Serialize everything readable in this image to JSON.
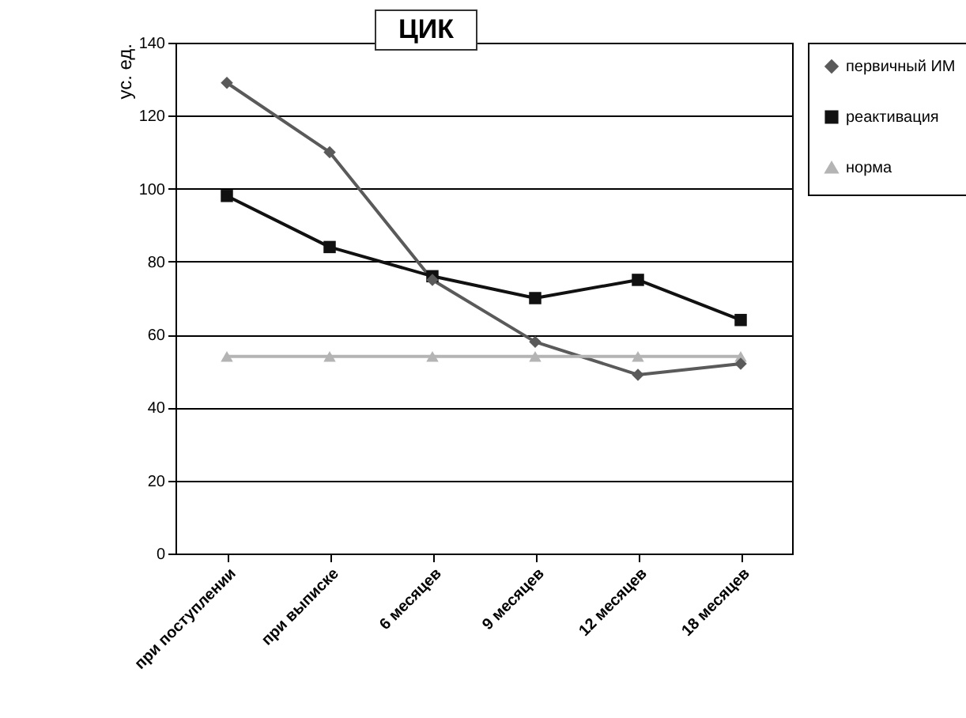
{
  "chart_data": {
    "type": "line",
    "title": "ЦИК",
    "ylabel": "ус. ед.",
    "categories": [
      "при поступлении",
      "при выписке",
      "6 месяцев",
      "9 месяцев",
      "12 месяцев",
      "18 месяцев"
    ],
    "series": [
      {
        "name": "первичный ИМ",
        "color": "#5a5a5a",
        "marker": "diamond",
        "values": [
          129,
          110,
          75,
          58,
          49,
          52
        ]
      },
      {
        "name": "реактивация",
        "color": "#111111",
        "marker": "square",
        "values": [
          98,
          84,
          76,
          70,
          75,
          64
        ]
      },
      {
        "name": "норма",
        "color": "#b4b4b4",
        "marker": "triangle",
        "values": [
          54,
          54,
          54,
          54,
          54,
          54
        ]
      }
    ],
    "ylim": [
      0,
      140
    ],
    "yticks": [
      0,
      20,
      40,
      60,
      80,
      100,
      120,
      140
    ],
    "grid": "y",
    "legend": "top right",
    "line_style": "solid"
  }
}
